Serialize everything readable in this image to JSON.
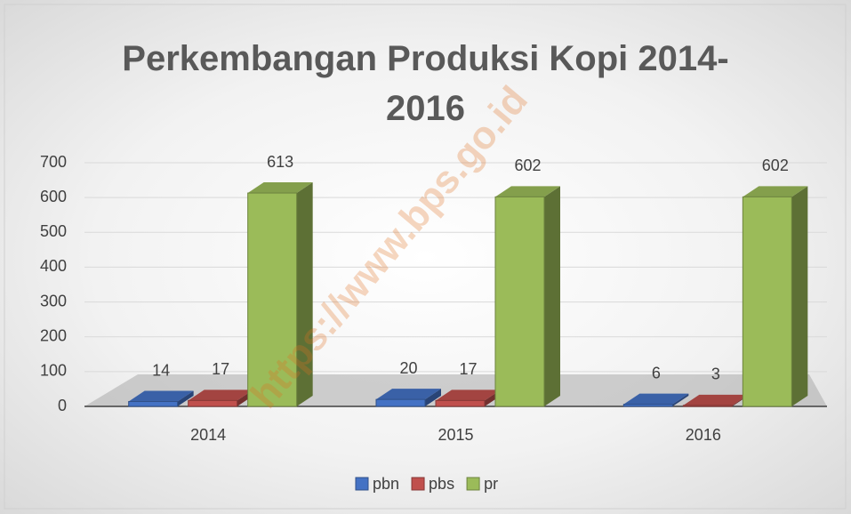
{
  "chart_data": {
    "type": "bar3d",
    "title": "Perkembangan Produksi Kopi 2014-2016",
    "watermark": "https://www.bps.go.id",
    "categories": [
      "2014",
      "2015",
      "2016"
    ],
    "series": [
      {
        "name": "pbn",
        "color": "#4472c4",
        "values": [
          14,
          20,
          6
        ]
      },
      {
        "name": "pbs",
        "color": "#c0504d",
        "values": [
          17,
          17,
          3
        ]
      },
      {
        "name": "pr",
        "color": "#9bbb59",
        "values": [
          613,
          602,
          602
        ]
      }
    ],
    "ylim": [
      0,
      700
    ],
    "yticks": [
      0,
      100,
      200,
      300,
      400,
      500,
      600,
      700
    ],
    "grid": true,
    "legend": "bottom"
  }
}
